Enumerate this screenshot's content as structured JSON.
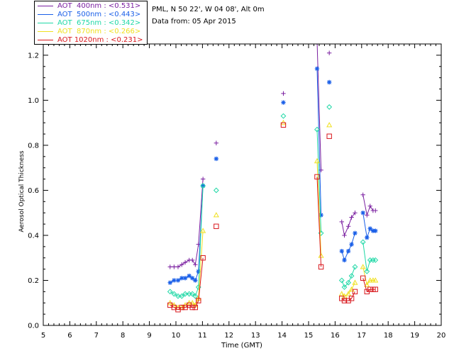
{
  "info": {
    "station": "PML, N 50 22', W 04 08', Alt 0m",
    "date": "Data from: 05 Apr 2015"
  },
  "colors": {
    "aot400": "#7a1fa0",
    "aot500": "#1a5fe8",
    "aot675": "#1fd8a6",
    "aot870": "#f0e020",
    "aot1020": "#d8161c"
  },
  "chart_data": {
    "type": "line",
    "xlabel": "Time (GMT)",
    "ylabel": "Aerosol Optical Thickness",
    "xlim": [
      5,
      20
    ],
    "ylim": [
      0.0,
      1.25
    ],
    "xticks": [
      "5",
      "6",
      "7",
      "8",
      "9",
      "10",
      "11",
      "12",
      "13",
      "14",
      "15",
      "16",
      "17",
      "18",
      "19",
      "20"
    ],
    "yticks": [
      "0.0",
      "0.2",
      "0.4",
      "0.6",
      "0.8",
      "1.0",
      "1.2"
    ],
    "grid": false,
    "legend_position": "top-left",
    "series": [
      {
        "name": "AOT  400nm : <0.531>",
        "color_key": "aot400",
        "marker": "plus",
        "segments": [
          [
            [
              9.78,
              0.26
            ],
            [
              9.93,
              0.26
            ],
            [
              10.08,
              0.26
            ],
            [
              10.22,
              0.27
            ],
            [
              10.35,
              0.28
            ],
            [
              10.5,
              0.29
            ],
            [
              10.62,
              0.29
            ],
            [
              10.73,
              0.27
            ],
            [
              10.85,
              0.36
            ],
            [
              11.02,
              0.65
            ]
          ],
          [
            [
              11.52,
              0.81
            ]
          ],
          [
            [
              14.05,
              1.03
            ]
          ],
          [
            [
              15.32,
              1.26
            ],
            [
              15.47,
              0.69
            ]
          ],
          [
            [
              15.78,
              1.21
            ]
          ],
          [
            [
              16.25,
              0.46
            ],
            [
              16.35,
              0.4
            ],
            [
              16.5,
              0.44
            ],
            [
              16.62,
              0.48
            ],
            [
              16.75,
              0.5
            ]
          ],
          [
            [
              17.05,
              0.58
            ],
            [
              17.2,
              0.49
            ],
            [
              17.32,
              0.53
            ],
            [
              17.43,
              0.51
            ],
            [
              17.52,
              0.51
            ]
          ]
        ]
      },
      {
        "name": "AOT  500nm : <0.443>",
        "color_key": "aot500",
        "marker": "asterisk",
        "segments": [
          [
            [
              9.78,
              0.19
            ],
            [
              9.93,
              0.2
            ],
            [
              10.08,
              0.2
            ],
            [
              10.22,
              0.21
            ],
            [
              10.35,
              0.21
            ],
            [
              10.5,
              0.22
            ],
            [
              10.62,
              0.21
            ],
            [
              10.73,
              0.2
            ],
            [
              10.85,
              0.24
            ],
            [
              11.02,
              0.62
            ]
          ],
          [
            [
              11.52,
              0.74
            ]
          ],
          [
            [
              14.05,
              0.99
            ]
          ],
          [
            [
              15.32,
              1.14
            ],
            [
              15.47,
              0.49
            ]
          ],
          [
            [
              15.78,
              1.08
            ]
          ],
          [
            [
              16.25,
              0.33
            ],
            [
              16.35,
              0.29
            ],
            [
              16.5,
              0.33
            ],
            [
              16.62,
              0.36
            ],
            [
              16.75,
              0.41
            ]
          ],
          [
            [
              17.05,
              0.5
            ],
            [
              17.2,
              0.39
            ],
            [
              17.32,
              0.43
            ],
            [
              17.43,
              0.42
            ],
            [
              17.52,
              0.42
            ]
          ]
        ]
      },
      {
        "name": "AOT  675nm : <0.342>",
        "color_key": "aot675",
        "marker": "diamond",
        "segments": [
          [
            [
              9.78,
              0.15
            ],
            [
              9.93,
              0.14
            ],
            [
              10.08,
              0.13
            ],
            [
              10.22,
              0.13
            ],
            [
              10.35,
              0.14
            ],
            [
              10.5,
              0.14
            ],
            [
              10.62,
              0.14
            ],
            [
              10.73,
              0.13
            ],
            [
              10.85,
              0.17
            ],
            [
              11.02,
              0.62
            ]
          ],
          [
            [
              11.52,
              0.6
            ]
          ],
          [
            [
              14.05,
              0.93
            ]
          ],
          [
            [
              15.32,
              0.87
            ],
            [
              15.47,
              0.41
            ]
          ],
          [
            [
              15.78,
              0.97
            ]
          ],
          [
            [
              16.25,
              0.2
            ],
            [
              16.35,
              0.17
            ],
            [
              16.5,
              0.19
            ],
            [
              16.62,
              0.22
            ],
            [
              16.75,
              0.26
            ]
          ],
          [
            [
              17.05,
              0.37
            ],
            [
              17.2,
              0.24
            ],
            [
              17.32,
              0.29
            ],
            [
              17.43,
              0.29
            ],
            [
              17.52,
              0.29
            ]
          ]
        ]
      },
      {
        "name": "AOT  870nm : <0.266>",
        "color_key": "aot870",
        "marker": "triangle",
        "segments": [
          [
            [
              9.78,
              0.1
            ],
            [
              9.93,
              0.09
            ],
            [
              10.08,
              0.08
            ],
            [
              10.22,
              0.08
            ],
            [
              10.35,
              0.09
            ],
            [
              10.5,
              0.1
            ],
            [
              10.62,
              0.1
            ],
            [
              10.73,
              0.09
            ],
            [
              10.85,
              0.12
            ],
            [
              11.02,
              0.42
            ]
          ],
          [
            [
              11.52,
              0.49
            ]
          ],
          [
            [
              14.05,
              0.9
            ]
          ],
          [
            [
              15.32,
              0.73
            ],
            [
              15.47,
              0.31
            ]
          ],
          [
            [
              15.78,
              0.89
            ]
          ],
          [
            [
              16.25,
              0.14
            ],
            [
              16.35,
              0.13
            ],
            [
              16.5,
              0.14
            ],
            [
              16.62,
              0.16
            ],
            [
              16.75,
              0.19
            ]
          ],
          [
            [
              17.05,
              0.26
            ],
            [
              17.2,
              0.18
            ],
            [
              17.32,
              0.2
            ],
            [
              17.43,
              0.2
            ],
            [
              17.52,
              0.2
            ]
          ]
        ]
      },
      {
        "name": "AOT 1020nm : <0.231>",
        "color_key": "aot1020",
        "marker": "square",
        "segments": [
          [
            [
              9.78,
              0.09
            ],
            [
              9.93,
              0.08
            ],
            [
              10.08,
              0.07
            ],
            [
              10.22,
              0.08
            ],
            [
              10.35,
              0.08
            ],
            [
              10.5,
              0.09
            ],
            [
              10.62,
              0.08
            ],
            [
              10.73,
              0.08
            ],
            [
              10.85,
              0.11
            ],
            [
              11.02,
              0.3
            ]
          ],
          [
            [
              11.52,
              0.44
            ]
          ],
          [
            [
              14.05,
              0.89
            ]
          ],
          [
            [
              15.32,
              0.66
            ],
            [
              15.47,
              0.26
            ]
          ],
          [
            [
              15.78,
              0.84
            ]
          ],
          [
            [
              16.25,
              0.12
            ],
            [
              16.35,
              0.11
            ],
            [
              16.5,
              0.11
            ],
            [
              16.62,
              0.12
            ],
            [
              16.75,
              0.15
            ]
          ],
          [
            [
              17.05,
              0.21
            ],
            [
              17.2,
              0.15
            ],
            [
              17.32,
              0.16
            ],
            [
              17.43,
              0.16
            ],
            [
              17.52,
              0.16
            ]
          ]
        ]
      }
    ]
  }
}
